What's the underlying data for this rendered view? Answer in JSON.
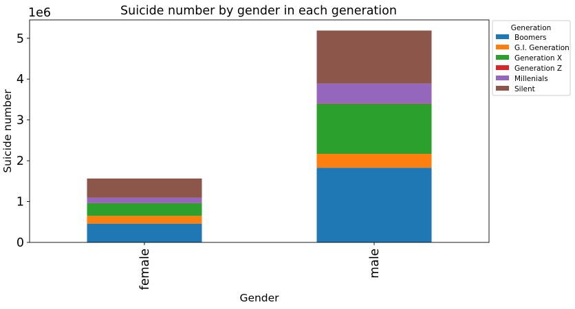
{
  "chart_data": {
    "type": "bar",
    "stacked": true,
    "title": "Suicide number by gender in each generation",
    "xlabel": "Gender",
    "ylabel": "Suicide number",
    "y_scale_label": "1e6",
    "categories": [
      "female",
      "male"
    ],
    "ylim": [
      0,
      5.45
    ],
    "yticks": [
      0,
      1,
      2,
      3,
      4,
      5
    ],
    "grid": false,
    "legend_title": "Generation",
    "legend_position": "outside top-right",
    "series": [
      {
        "name": "Boomers",
        "color": "#1f77b4",
        "values": [
          0.46,
          1.83
        ]
      },
      {
        "name": "G.I. Generation",
        "color": "#ff7f0e",
        "values": [
          0.19,
          0.34
        ]
      },
      {
        "name": "Generation X",
        "color": "#2ca02c",
        "values": [
          0.31,
          1.22
        ]
      },
      {
        "name": "Generation Z",
        "color": "#d62728",
        "values": [
          0.005,
          0.01
        ]
      },
      {
        "name": "Millenials",
        "color": "#9467bd",
        "values": [
          0.13,
          0.49
        ]
      },
      {
        "name": "Silent",
        "color": "#8c564b",
        "values": [
          0.47,
          1.3
        ]
      }
    ]
  }
}
